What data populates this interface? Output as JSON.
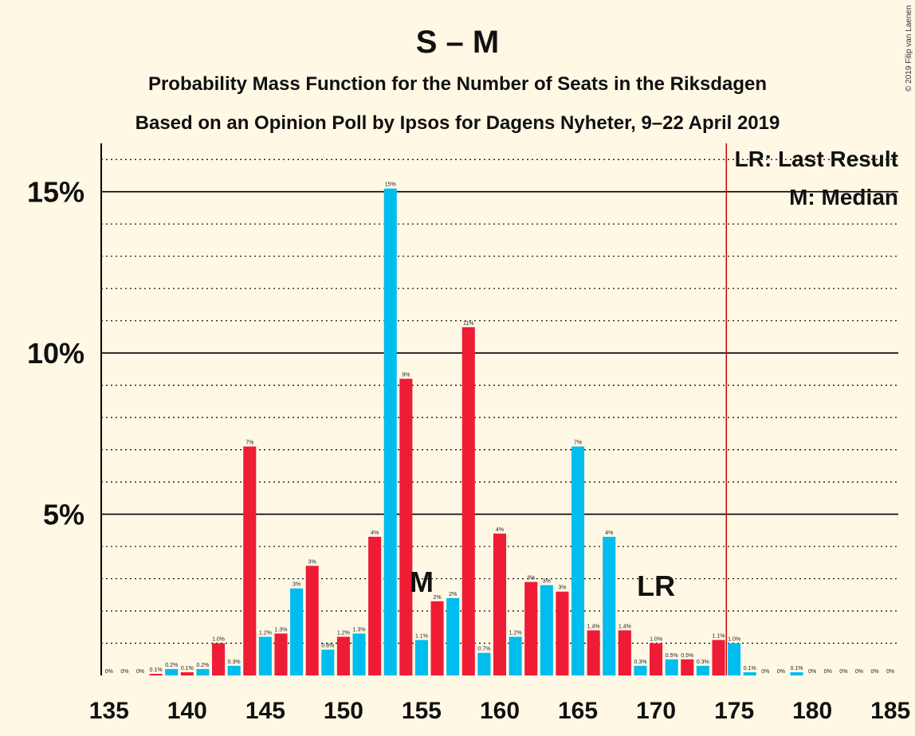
{
  "title": "S – M",
  "subtitle1": "Probability Mass Function for the Number of Seats in the Riksdagen",
  "subtitle2": "Based on an Opinion Poll by Ipsos for Dagens Nyheter, 9–22 April 2019",
  "copyright": "© 2019 Filip van Laenen",
  "legend": {
    "last_result": "LR: Last Result",
    "median": "M: Median"
  },
  "markers": {
    "median_label": "M",
    "median_seat": 155,
    "lr_label": "LR",
    "lr_seat": 170,
    "majority_line_seat": 174.5
  },
  "colors": {
    "red": "#EE1C35",
    "blue": "#00BDEF",
    "majority_line": "#CC0000",
    "background": "#FFF8E5"
  },
  "chart_data": {
    "type": "bar",
    "x": [
      135,
      136,
      137,
      138,
      139,
      140,
      141,
      142,
      143,
      144,
      145,
      146,
      147,
      148,
      149,
      150,
      151,
      152,
      153,
      154,
      155,
      156,
      157,
      158,
      159,
      160,
      161,
      162,
      163,
      164,
      165,
      166,
      167,
      168,
      169,
      170,
      171,
      172,
      173,
      174,
      175,
      176,
      177,
      178,
      179,
      180,
      181,
      182,
      183,
      184,
      185
    ],
    "values": [
      0,
      0,
      0,
      0.05,
      0.2,
      0.1,
      0.2,
      1.0,
      0.3,
      7.1,
      1.2,
      1.3,
      2.7,
      3.4,
      0.8,
      1.2,
      1.3,
      4.3,
      15.1,
      9.2,
      1.1,
      2.3,
      2.4,
      10.8,
      0.7,
      4.4,
      1.2,
      2.9,
      2.8,
      2.6,
      7.1,
      1.4,
      4.3,
      1.4,
      0.3,
      1.0,
      0.5,
      0.5,
      0.3,
      1.1,
      1.0,
      0.1,
      0,
      0,
      0.1,
      0,
      0,
      0,
      0,
      0,
      0
    ],
    "data_labels": [
      "0%",
      "0%",
      "0%",
      "0.1%",
      "0.2%",
      "0.1%",
      "0.2%",
      "1.0%",
      "0.3%",
      "7%",
      "1.2%",
      "1.3%",
      "3%",
      "3%",
      "0.8%",
      "1.2%",
      "1.3%",
      "4%",
      "15%",
      "9%",
      "1.1%",
      "2%",
      "2%",
      "11%",
      "0.7%",
      "4%",
      "1.2%",
      "3%",
      "3%",
      "3%",
      "7%",
      "1.4%",
      "4%",
      "1.4%",
      "0.3%",
      "1.0%",
      "0.5%",
      "0.5%",
      "0.3%",
      "1.1%",
      "1.0%",
      "0.1%",
      "0%",
      "0%",
      "0.1%",
      "0%",
      "0%",
      "0%",
      "0%",
      "0%",
      "0%"
    ],
    "colors": [
      "red",
      "red",
      "red",
      "red",
      "blue",
      "red",
      "blue",
      "red",
      "blue",
      "red",
      "blue",
      "red",
      "blue",
      "red",
      "blue",
      "red",
      "blue",
      "red",
      "blue",
      "red",
      "blue",
      "red",
      "blue",
      "red",
      "blue",
      "red",
      "blue",
      "red",
      "blue",
      "red",
      "blue",
      "red",
      "blue",
      "red",
      "blue",
      "red",
      "blue",
      "red",
      "blue",
      "red",
      "blue",
      "blue",
      "blue",
      "blue",
      "blue",
      "blue",
      "blue",
      "blue",
      "blue",
      "blue",
      "blue"
    ],
    "x_ticks": [
      135,
      140,
      145,
      150,
      155,
      160,
      165,
      170,
      175,
      180,
      185
    ],
    "y_ticks": [
      {
        "value": 5,
        "label": "5%"
      },
      {
        "value": 10,
        "label": "10%"
      },
      {
        "value": 15,
        "label": "15%"
      }
    ],
    "ylim": [
      0,
      16.5
    ],
    "grid": true,
    "legend_position": "top-right"
  }
}
